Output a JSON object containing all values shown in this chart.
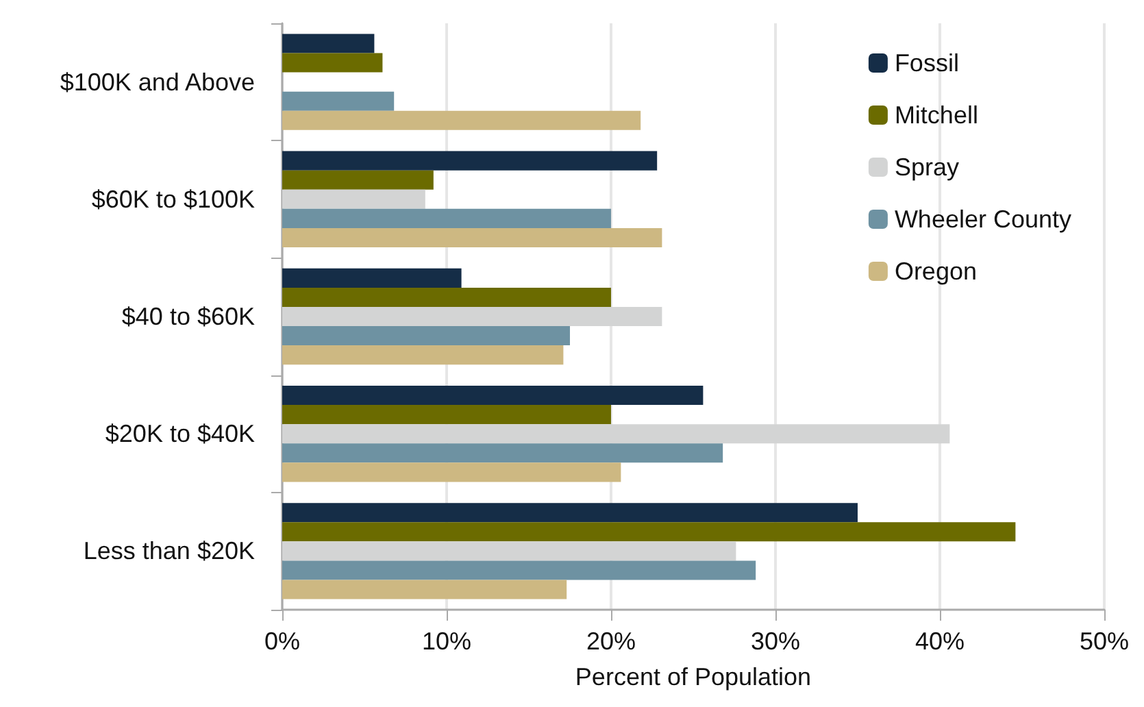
{
  "chart_data": {
    "type": "bar",
    "orientation": "horizontal",
    "xlabel": "Percent of Population",
    "categories": [
      "$100K and Above",
      "$60K to $100K",
      "$40 to $60K",
      "$20K to $40K",
      "Less than $20K"
    ],
    "series": [
      {
        "name": "Fossil",
        "color": "#152d47",
        "values": [
          5.6,
          22.8,
          10.9,
          25.6,
          35.0
        ]
      },
      {
        "name": "Mitchell",
        "color": "#6b6b00",
        "values": [
          6.1,
          9.2,
          20.0,
          20.0,
          44.6
        ]
      },
      {
        "name": "Spray",
        "color": "#d3d4d4",
        "values": [
          null,
          8.7,
          23.1,
          40.6,
          27.6
        ]
      },
      {
        "name": "Wheeler County",
        "color": "#6e92a2",
        "values": [
          6.8,
          20.0,
          17.5,
          26.8,
          28.8
        ]
      },
      {
        "name": "Oregon",
        "color": "#cdb882",
        "values": [
          21.8,
          23.1,
          17.1,
          20.6,
          17.3
        ]
      }
    ],
    "xlim": [
      0,
      50
    ],
    "xticks": [
      {
        "value": 0,
        "label": "0%"
      },
      {
        "value": 10,
        "label": "10%"
      },
      {
        "value": 20,
        "label": "20%"
      },
      {
        "value": 30,
        "label": "30%"
      },
      {
        "value": 40,
        "label": "40%"
      },
      {
        "value": 50,
        "label": "50%"
      }
    ],
    "grid": "x",
    "legend": "top right"
  }
}
